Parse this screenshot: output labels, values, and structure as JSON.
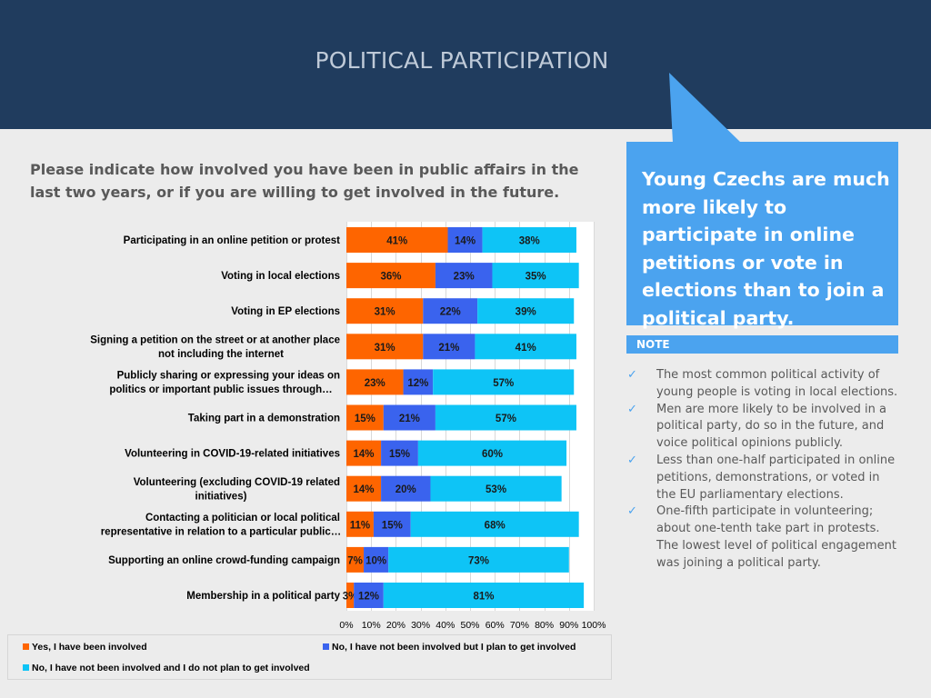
{
  "header": {
    "title": "POLITICAL PARTICIPATION"
  },
  "question": "Please indicate how involved you have been  in public affairs in the last two years, or if you are willing to get involved in the future.",
  "callout": {
    "text": "Young Czechs are much more likely to participate in online petitions or vote in elections than to join a political party."
  },
  "note": {
    "label": "NOTE",
    "items": [
      "The most common political activity of young people is voting in local elections.",
      "Men are more likely to be involved in a political party, do so in the future, and voice political opinions publicly.",
      "Less than one-half participated in online petitions, demonstrations, or voted in the EU parliamentary elections.",
      "One-fifth participate in volunteering; about one-tenth take part in protests. The lowest level of political engagement was joining a political party."
    ]
  },
  "colors": {
    "header": "#203c5e",
    "involved": "#fe6500",
    "plan": "#3a63ee",
    "not_plan": "#0ec4f6",
    "accent": "#4ba3ef"
  },
  "chart_data": {
    "type": "bar",
    "orientation": "horizontal",
    "stacked": true,
    "categories": [
      [
        "Participating in an online petition or protest"
      ],
      [
        "Voting in local elections"
      ],
      [
        "Voting in EP elections"
      ],
      [
        "Signing a petition on the street or at another place",
        "not including the internet"
      ],
      [
        "Publicly sharing or expressing your ideas on",
        "politics or important public issues through…"
      ],
      [
        "Taking part in a demonstration"
      ],
      [
        "Volunteering in COVID-19-related initiatives"
      ],
      [
        "Volunteering (excluding COVID-19 related",
        "initiatives)"
      ],
      [
        "Contacting a politician or local political",
        "representative in relation to a particular public…"
      ],
      [
        "Supporting an online crowd-funding campaign"
      ],
      [
        "Membership in a political party"
      ]
    ],
    "series": [
      {
        "name": "Yes, I have been involved",
        "color": "#fe6500",
        "values": [
          41,
          36,
          31,
          31,
          23,
          15,
          14,
          14,
          11,
          7,
          3
        ]
      },
      {
        "name": "No, I have not been involved but I plan to get involved",
        "color": "#3a63ee",
        "values": [
          14,
          23,
          22,
          21,
          12,
          21,
          15,
          20,
          15,
          10,
          12
        ]
      },
      {
        "name": "No, I have not been involved and I do not plan to get involved",
        "color": "#0ec4f6",
        "values": [
          38,
          35,
          39,
          41,
          57,
          57,
          60,
          53,
          68,
          73,
          81
        ]
      }
    ],
    "xlim": [
      0,
      100
    ],
    "xticks": [
      "0%",
      "10%",
      "20%",
      "30%",
      "40%",
      "50%",
      "60%",
      "70%",
      "80%",
      "90%",
      "100%"
    ],
    "legend_position": "bottom"
  }
}
